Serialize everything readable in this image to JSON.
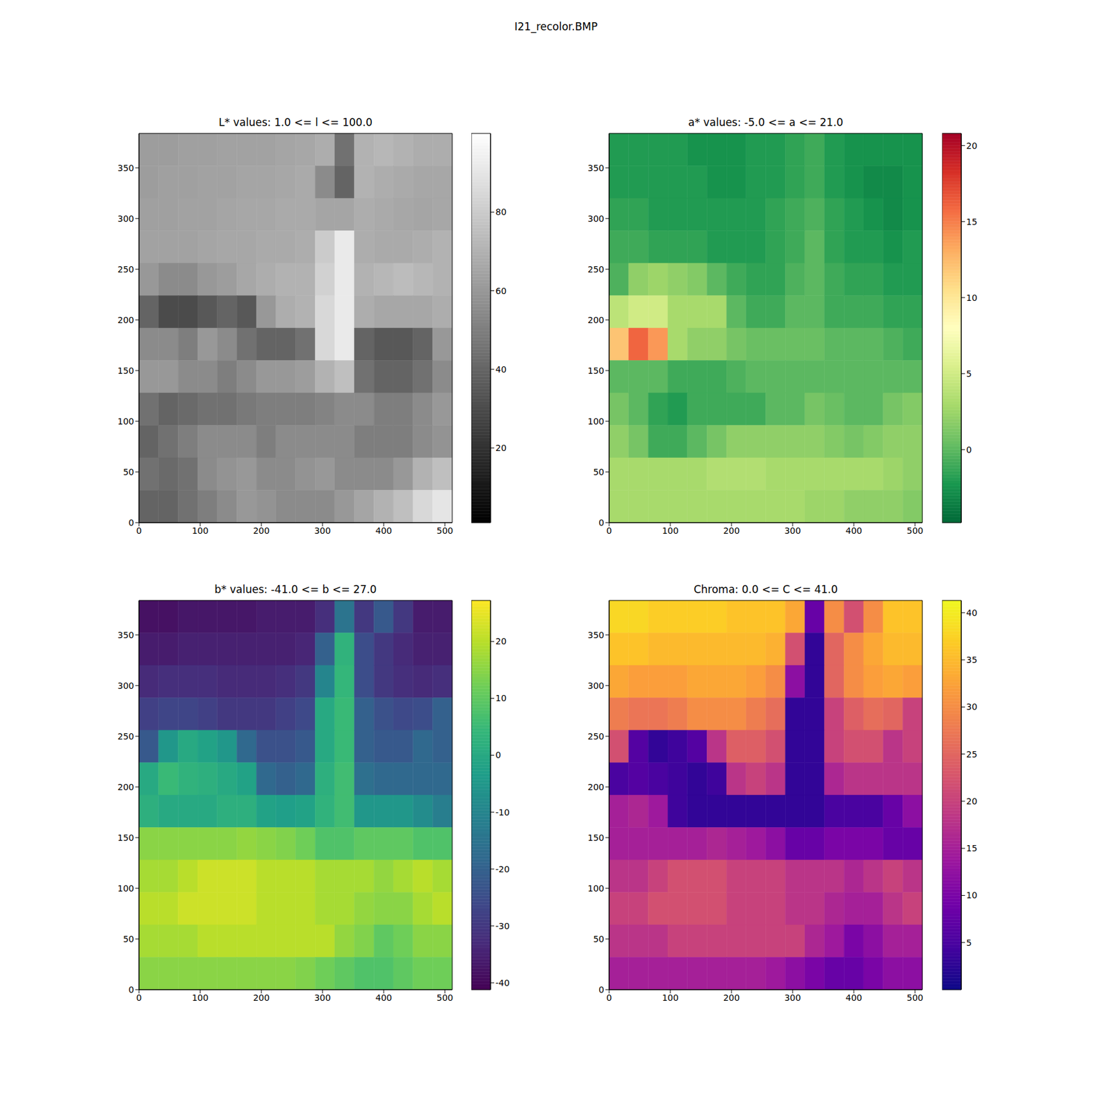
{
  "title": "I21_recolor.BMP",
  "chart_data": [
    {
      "type": "heatmap",
      "title": "L* values: 1.0 <= l <= 100.0",
      "color": "gray",
      "xlim": [
        0,
        512
      ],
      "ylim": [
        0,
        384
      ],
      "xticks": [
        0,
        100,
        200,
        300,
        400,
        500
      ],
      "yticks": [
        0,
        50,
        100,
        150,
        200,
        250,
        300,
        350
      ],
      "x_edges": [
        0,
        32,
        64,
        96,
        128,
        160,
        192,
        224,
        256,
        288,
        320,
        352,
        384,
        416,
        448,
        480,
        512
      ],
      "y_edges": [
        384,
        352,
        320,
        288,
        256,
        224,
        192,
        160,
        128,
        96,
        64,
        32,
        0
      ],
      "cells": [
        [
          62,
          62,
          63,
          63,
          64,
          64,
          64,
          65,
          66,
          68,
          45,
          70,
          72,
          70,
          68,
          68
        ],
        [
          62,
          63,
          63,
          64,
          64,
          65,
          65,
          66,
          67,
          55,
          40,
          70,
          68,
          67,
          66,
          66
        ],
        [
          63,
          63,
          64,
          64,
          65,
          66,
          66,
          67,
          67,
          65,
          65,
          68,
          67,
          66,
          65,
          66
        ],
        [
          64,
          64,
          64,
          65,
          66,
          66,
          67,
          67,
          68,
          80,
          92,
          68,
          67,
          67,
          68,
          70
        ],
        [
          60,
          55,
          55,
          60,
          62,
          66,
          68,
          70,
          70,
          82,
          92,
          70,
          72,
          74,
          72,
          70
        ],
        [
          40,
          30,
          30,
          35,
          40,
          35,
          60,
          68,
          70,
          85,
          92,
          68,
          66,
          66,
          66,
          68
        ],
        [
          55,
          55,
          50,
          60,
          55,
          45,
          40,
          40,
          45,
          85,
          92,
          40,
          35,
          35,
          40,
          60
        ],
        [
          60,
          60,
          55,
          55,
          50,
          55,
          60,
          60,
          62,
          70,
          75,
          45,
          40,
          40,
          45,
          55
        ],
        [
          45,
          40,
          42,
          45,
          45,
          48,
          50,
          50,
          50,
          52,
          55,
          55,
          50,
          50,
          55,
          60
        ],
        [
          40,
          45,
          50,
          55,
          55,
          55,
          50,
          55,
          55,
          55,
          55,
          50,
          50,
          50,
          55,
          58
        ],
        [
          45,
          42,
          45,
          55,
          58,
          60,
          55,
          55,
          58,
          60,
          55,
          55,
          55,
          60,
          70,
          75
        ],
        [
          40,
          40,
          45,
          50,
          55,
          60,
          58,
          55,
          55,
          55,
          60,
          65,
          70,
          75,
          85,
          90
        ]
      ],
      "colorbar": {
        "range": [
          1,
          100
        ],
        "ticks": [
          20,
          40,
          60,
          80
        ]
      }
    },
    {
      "type": "heatmap",
      "title": "a* values: -5.0 <= a <= 21.0",
      "color": "RdYlGn_r",
      "xlim": [
        0,
        512
      ],
      "ylim": [
        0,
        384
      ],
      "xticks": [
        0,
        100,
        200,
        300,
        400,
        500
      ],
      "yticks": [
        0,
        50,
        100,
        150,
        200,
        250,
        300,
        350
      ],
      "x_edges": [
        0,
        32,
        64,
        96,
        128,
        160,
        192,
        224,
        256,
        288,
        320,
        352,
        384,
        416,
        448,
        480,
        512
      ],
      "y_edges": [
        384,
        352,
        320,
        288,
        256,
        224,
        192,
        160,
        128,
        96,
        64,
        32,
        0
      ],
      "cells": [
        [
          -2,
          -2,
          -2,
          -2,
          -2.5,
          -2.5,
          -2.5,
          -2,
          -2,
          -1.5,
          -1,
          -2,
          -2.5,
          -2.5,
          -2.5,
          -2.5
        ],
        [
          -2,
          -2,
          -2,
          -2,
          -2,
          -2.5,
          -2.5,
          -2,
          -2,
          -1.5,
          -1,
          -2,
          -2.5,
          -3,
          -3,
          -2.5
        ],
        [
          -1.5,
          -1.5,
          -2,
          -2,
          -2,
          -2,
          -2,
          -2,
          -1.5,
          -1,
          -0.5,
          -1.5,
          -2,
          -2.5,
          -3,
          -2.5
        ],
        [
          -1,
          -1,
          -1.5,
          -1.5,
          -1.5,
          -2,
          -2,
          -2,
          -1.5,
          -1,
          0,
          -1.5,
          -2,
          -2,
          -2.5,
          -2
        ],
        [
          -0.5,
          2,
          2.5,
          2,
          1.5,
          0,
          -1,
          -1.5,
          -1.5,
          -0.5,
          0,
          -1,
          -1.5,
          -1.5,
          -2,
          -2
        ],
        [
          4,
          5,
          5,
          3,
          3,
          3,
          0,
          -1,
          -1,
          0,
          0,
          -1,
          -1,
          -1,
          -1.5,
          -1.5
        ],
        [
          12,
          16,
          14,
          3,
          2,
          2,
          1,
          0.5,
          0.5,
          0.5,
          0.5,
          0,
          0,
          0,
          -0.5,
          -1
        ],
        [
          0,
          0,
          0,
          -1,
          -1,
          -1,
          -0.5,
          0,
          0,
          0,
          0,
          0,
          0,
          0,
          0,
          0
        ],
        [
          1,
          0,
          -1.5,
          -2,
          -1,
          -1,
          -1,
          -1,
          0,
          0,
          1,
          0.5,
          0,
          0,
          1,
          1.5
        ],
        [
          2,
          1,
          -1,
          -1,
          0,
          1,
          2,
          2,
          2,
          2,
          2,
          1.5,
          1,
          1.5,
          2,
          2
        ],
        [
          3,
          3,
          3,
          3,
          3,
          3.5,
          3.5,
          3.5,
          3,
          3,
          3,
          3,
          3,
          3,
          2.5,
          2
        ],
        [
          3,
          3,
          3,
          3,
          3,
          3,
          3,
          3,
          3,
          3,
          2.5,
          2.5,
          2,
          2,
          2,
          1.5
        ]
      ],
      "colorbar": {
        "range": [
          -4.8,
          20.8
        ],
        "ticks": [
          0,
          5,
          10,
          15,
          20
        ]
      }
    },
    {
      "type": "heatmap",
      "title": "b* values: -41.0 <= b <= 27.0",
      "color": "viridis",
      "xlim": [
        0,
        512
      ],
      "ylim": [
        0,
        384
      ],
      "xticks": [
        0,
        100,
        200,
        300,
        400,
        500
      ],
      "yticks": [
        0,
        50,
        100,
        150,
        200,
        250,
        300,
        350
      ],
      "x_edges": [
        0,
        32,
        64,
        96,
        128,
        160,
        192,
        224,
        256,
        288,
        320,
        352,
        384,
        416,
        448,
        480,
        512
      ],
      "y_edges": [
        384,
        352,
        320,
        288,
        256,
        224,
        192,
        160,
        128,
        96,
        64,
        32,
        0
      ],
      "cells": [
        [
          -38,
          -38,
          -37,
          -37,
          -37,
          -37,
          -36,
          -36,
          -36,
          -32,
          -15,
          -30,
          -22,
          -30,
          -36,
          -36
        ],
        [
          -36,
          -36,
          -35,
          -35,
          -35,
          -35,
          -35,
          -35,
          -34,
          -20,
          3,
          -25,
          -30,
          -33,
          -35,
          -35
        ],
        [
          -33,
          -32,
          -32,
          -32,
          -33,
          -33,
          -33,
          -32,
          -30,
          -10,
          4,
          -25,
          -30,
          -32,
          -33,
          -32
        ],
        [
          -28,
          -27,
          -27,
          -28,
          -30,
          -30,
          -30,
          -28,
          -26,
          0,
          5,
          -20,
          -24,
          -26,
          -25,
          -20
        ],
        [
          -22,
          -5,
          0,
          -2,
          -5,
          -18,
          -24,
          -24,
          -22,
          0,
          5,
          -20,
          -22,
          -22,
          -18,
          -20
        ],
        [
          0,
          5,
          3,
          2,
          0,
          -2,
          -18,
          -20,
          -18,
          2,
          6,
          -16,
          -18,
          -18,
          -18,
          -18
        ],
        [
          2,
          0,
          0,
          0,
          2,
          2,
          -2,
          -3,
          -2,
          3,
          6,
          -5,
          -5,
          -5,
          -8,
          -12
        ],
        [
          15,
          15,
          15,
          15,
          15,
          16,
          15,
          14,
          12,
          8,
          8,
          10,
          10,
          10,
          8,
          8
        ],
        [
          18,
          18,
          20,
          22,
          22,
          22,
          20,
          20,
          20,
          18,
          18,
          18,
          16,
          18,
          20,
          18
        ],
        [
          20,
          20,
          22,
          22,
          22,
          22,
          20,
          20,
          20,
          18,
          18,
          16,
          15,
          15,
          18,
          20
        ],
        [
          18,
          18,
          18,
          20,
          20,
          20,
          20,
          20,
          20,
          20,
          16,
          14,
          10,
          12,
          15,
          15
        ],
        [
          15,
          15,
          15,
          15,
          15,
          15,
          15,
          15,
          14,
          12,
          10,
          8,
          8,
          10,
          12,
          12
        ]
      ],
      "colorbar": {
        "range": [
          -41.2,
          27.2
        ],
        "ticks": [
          -40,
          -30,
          -20,
          -10,
          0,
          10,
          20
        ]
      }
    },
    {
      "type": "heatmap",
      "title": "Chroma: 0.0 <= C <= 41.0",
      "color": "plasma",
      "xlim": [
        0,
        512
      ],
      "ylim": [
        0,
        384
      ],
      "xticks": [
        0,
        100,
        200,
        300,
        400,
        500
      ],
      "yticks": [
        0,
        50,
        100,
        150,
        200,
        250,
        300,
        350
      ],
      "x_edges": [
        0,
        32,
        64,
        96,
        128,
        160,
        192,
        224,
        256,
        288,
        320,
        352,
        384,
        416,
        448,
        480,
        512
      ],
      "y_edges": [
        384,
        352,
        320,
        288,
        256,
        224,
        192,
        160,
        128,
        96,
        64,
        32,
        0
      ],
      "cells": [
        [
          38,
          38,
          37,
          37,
          37,
          37,
          36,
          36,
          36,
          33,
          8,
          30,
          22,
          30,
          36,
          36
        ],
        [
          36,
          36,
          35,
          35,
          35,
          35,
          35,
          35,
          34,
          22,
          3,
          25,
          30,
          33,
          35,
          35
        ],
        [
          33,
          32,
          32,
          32,
          33,
          33,
          33,
          32,
          30,
          12,
          3,
          25,
          30,
          32,
          33,
          32
        ],
        [
          28,
          27,
          27,
          28,
          30,
          30,
          30,
          28,
          26,
          3,
          3,
          20,
          24,
          26,
          25,
          20
        ],
        [
          22,
          6,
          3,
          4,
          6,
          18,
          24,
          24,
          22,
          3,
          3,
          20,
          22,
          22,
          18,
          20
        ],
        [
          5,
          6,
          5,
          4,
          3,
          4,
          18,
          20,
          18,
          3,
          3,
          16,
          18,
          18,
          18,
          18
        ],
        [
          15,
          16,
          14,
          4,
          3,
          3,
          3,
          3,
          3,
          3,
          3,
          5,
          5,
          5,
          8,
          12
        ],
        [
          15,
          15,
          15,
          15,
          15,
          16,
          15,
          14,
          12,
          8,
          8,
          10,
          10,
          10,
          8,
          8
        ],
        [
          18,
          18,
          20,
          22,
          22,
          22,
          20,
          20,
          20,
          18,
          18,
          18,
          16,
          18,
          20,
          18
        ],
        [
          20,
          20,
          22,
          22,
          22,
          22,
          20,
          20,
          20,
          18,
          18,
          16,
          15,
          15,
          18,
          20
        ],
        [
          18,
          18,
          18,
          20,
          20,
          20,
          20,
          20,
          20,
          20,
          16,
          14,
          10,
          12,
          15,
          15
        ],
        [
          15,
          15,
          15,
          15,
          15,
          15,
          15,
          15,
          14,
          12,
          10,
          8,
          8,
          10,
          12,
          12
        ]
      ],
      "colorbar": {
        "range": [
          0,
          41.3
        ],
        "ticks": [
          5,
          10,
          15,
          20,
          25,
          30,
          35,
          40
        ]
      }
    }
  ]
}
